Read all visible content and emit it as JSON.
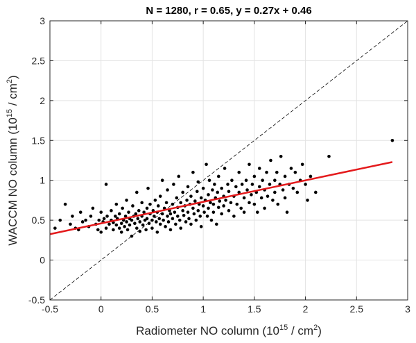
{
  "chart_data": {
    "type": "scatter",
    "title": "N = 1280, r = 0.65, y = 0.27x + 0.46",
    "xlabel": {
      "main": "Radiometer NO column (10",
      "sup": "15",
      "mid": " / cm",
      "sup2": "2",
      "end": ")"
    },
    "ylabel": {
      "main": "WACCM NO column (10",
      "sup": "15",
      "mid": " / cm",
      "sup2": "2",
      "end": ")"
    },
    "xlim": [
      -0.5,
      3
    ],
    "ylim": [
      -0.5,
      3
    ],
    "xticks": [
      "-0.5",
      "0",
      "0.5",
      "1",
      "1.5",
      "2",
      "2.5",
      "3"
    ],
    "yticks": [
      "-0.5",
      "0",
      "0.5",
      "1",
      "1.5",
      "2",
      "2.5",
      "3"
    ],
    "grid": true,
    "fit_line": {
      "slope": 0.27,
      "intercept": 0.46,
      "x_range": [
        -0.5,
        2.85
      ],
      "color": "#e41a1c"
    },
    "identity_line": {
      "style": "dashed",
      "color": "#000000"
    },
    "marker_color": "#000000",
    "n_points": 1280,
    "points": [
      [
        -0.45,
        0.4
      ],
      [
        -0.4,
        0.5
      ],
      [
        -0.35,
        0.7
      ],
      [
        -0.3,
        0.45
      ],
      [
        -0.28,
        0.55
      ],
      [
        -0.25,
        0.4
      ],
      [
        -0.22,
        0.38
      ],
      [
        -0.2,
        0.6
      ],
      [
        -0.18,
        0.48
      ],
      [
        -0.15,
        0.5
      ],
      [
        -0.12,
        0.42
      ],
      [
        -0.1,
        0.55
      ],
      [
        -0.08,
        0.65
      ],
      [
        -0.05,
        0.45
      ],
      [
        -0.03,
        0.38
      ],
      [
        -0.02,
        0.5
      ],
      [
        0.0,
        0.35
      ],
      [
        0.0,
        0.6
      ],
      [
        0.02,
        0.48
      ],
      [
        0.03,
        0.52
      ],
      [
        0.05,
        0.4
      ],
      [
        0.05,
        0.95
      ],
      [
        0.06,
        0.55
      ],
      [
        0.08,
        0.45
      ],
      [
        0.1,
        0.5
      ],
      [
        0.1,
        0.62
      ],
      [
        0.12,
        0.38
      ],
      [
        0.12,
        0.47
      ],
      [
        0.14,
        0.55
      ],
      [
        0.15,
        0.44
      ],
      [
        0.15,
        0.7
      ],
      [
        0.16,
        0.52
      ],
      [
        0.18,
        0.4
      ],
      [
        0.18,
        0.58
      ],
      [
        0.2,
        0.46
      ],
      [
        0.2,
        0.35
      ],
      [
        0.21,
        0.65
      ],
      [
        0.22,
        0.5
      ],
      [
        0.23,
        0.42
      ],
      [
        0.24,
        0.55
      ],
      [
        0.25,
        0.48
      ],
      [
        0.25,
        0.75
      ],
      [
        0.26,
        0.38
      ],
      [
        0.27,
        0.6
      ],
      [
        0.28,
        0.52
      ],
      [
        0.28,
        0.44
      ],
      [
        0.3,
        0.5
      ],
      [
        0.3,
        0.3
      ],
      [
        0.31,
        0.68
      ],
      [
        0.32,
        0.55
      ],
      [
        0.33,
        0.46
      ],
      [
        0.34,
        0.58
      ],
      [
        0.35,
        0.4
      ],
      [
        0.35,
        0.85
      ],
      [
        0.36,
        0.52
      ],
      [
        0.37,
        0.62
      ],
      [
        0.38,
        0.48
      ],
      [
        0.38,
        0.36
      ],
      [
        0.4,
        0.55
      ],
      [
        0.4,
        0.72
      ],
      [
        0.41,
        0.44
      ],
      [
        0.42,
        0.6
      ],
      [
        0.43,
        0.5
      ],
      [
        0.44,
        0.38
      ],
      [
        0.45,
        0.65
      ],
      [
        0.45,
        0.52
      ],
      [
        0.46,
        0.9
      ],
      [
        0.47,
        0.46
      ],
      [
        0.48,
        0.58
      ],
      [
        0.48,
        0.7
      ],
      [
        0.5,
        0.5
      ],
      [
        0.5,
        0.4
      ],
      [
        0.51,
        0.62
      ],
      [
        0.52,
        0.55
      ],
      [
        0.53,
        0.75
      ],
      [
        0.54,
        0.48
      ],
      [
        0.55,
        0.6
      ],
      [
        0.55,
        0.35
      ],
      [
        0.56,
        0.68
      ],
      [
        0.57,
        0.52
      ],
      [
        0.58,
        0.8
      ],
      [
        0.58,
        0.45
      ],
      [
        0.6,
        0.58
      ],
      [
        0.6,
        1.0
      ],
      [
        0.61,
        0.5
      ],
      [
        0.62,
        0.65
      ],
      [
        0.63,
        0.42
      ],
      [
        0.64,
        0.72
      ],
      [
        0.65,
        0.55
      ],
      [
        0.65,
        0.88
      ],
      [
        0.66,
        0.48
      ],
      [
        0.67,
        0.62
      ],
      [
        0.68,
        0.58
      ],
      [
        0.68,
        0.38
      ],
      [
        0.7,
        0.7
      ],
      [
        0.7,
        0.52
      ],
      [
        0.71,
        0.95
      ],
      [
        0.72,
        0.6
      ],
      [
        0.73,
        0.45
      ],
      [
        0.74,
        0.78
      ],
      [
        0.75,
        0.55
      ],
      [
        0.75,
        0.66
      ],
      [
        0.76,
        1.05
      ],
      [
        0.77,
        0.5
      ],
      [
        0.78,
        0.72
      ],
      [
        0.78,
        0.4
      ],
      [
        0.8,
        0.62
      ],
      [
        0.8,
        0.85
      ],
      [
        0.81,
        0.56
      ],
      [
        0.82,
        0.68
      ],
      [
        0.83,
        0.48
      ],
      [
        0.84,
        0.75
      ],
      [
        0.85,
        0.6
      ],
      [
        0.85,
        0.92
      ],
      [
        0.86,
        0.52
      ],
      [
        0.87,
        0.7
      ],
      [
        0.88,
        0.45
      ],
      [
        0.88,
        0.8
      ],
      [
        0.9,
        0.65
      ],
      [
        0.9,
        1.1
      ],
      [
        0.91,
        0.58
      ],
      [
        0.92,
        0.74
      ],
      [
        0.93,
        0.5
      ],
      [
        0.94,
        0.86
      ],
      [
        0.95,
        0.62
      ],
      [
        0.95,
        0.98
      ],
      [
        0.96,
        0.7
      ],
      [
        0.97,
        0.55
      ],
      [
        0.98,
        0.78
      ],
      [
        0.98,
        0.42
      ],
      [
        1.0,
        0.68
      ],
      [
        1.0,
        0.9
      ],
      [
        1.01,
        0.6
      ],
      [
        1.02,
        0.75
      ],
      [
        1.03,
        1.2
      ],
      [
        1.04,
        0.55
      ],
      [
        1.05,
        0.82
      ],
      [
        1.05,
        0.65
      ],
      [
        1.06,
        1.0
      ],
      [
        1.07,
        0.72
      ],
      [
        1.08,
        0.5
      ],
      [
        1.09,
        0.88
      ],
      [
        1.1,
        0.7
      ],
      [
        1.1,
        0.6
      ],
      [
        1.11,
        0.95
      ],
      [
        1.12,
        0.78
      ],
      [
        1.13,
        0.45
      ],
      [
        1.14,
        0.85
      ],
      [
        1.15,
        0.66
      ],
      [
        1.15,
        1.05
      ],
      [
        1.16,
        0.74
      ],
      [
        1.18,
        0.9
      ],
      [
        1.18,
        0.58
      ],
      [
        1.2,
        0.8
      ],
      [
        1.2,
        0.68
      ],
      [
        1.21,
        1.15
      ],
      [
        1.22,
        0.75
      ],
      [
        1.24,
        0.95
      ],
      [
        1.25,
        0.62
      ],
      [
        1.25,
        0.86
      ],
      [
        1.27,
        0.72
      ],
      [
        1.28,
        1.0
      ],
      [
        1.3,
        0.8
      ],
      [
        1.3,
        0.55
      ],
      [
        1.32,
        0.92
      ],
      [
        1.33,
        0.7
      ],
      [
        1.35,
        0.85
      ],
      [
        1.35,
        1.1
      ],
      [
        1.37,
        0.65
      ],
      [
        1.38,
        0.95
      ],
      [
        1.4,
        0.78
      ],
      [
        1.4,
        0.6
      ],
      [
        1.42,
        1.0
      ],
      [
        1.43,
        0.88
      ],
      [
        1.45,
        0.72
      ],
      [
        1.45,
        1.2
      ],
      [
        1.47,
        0.82
      ],
      [
        1.48,
        0.95
      ],
      [
        1.5,
        0.7
      ],
      [
        1.5,
        1.05
      ],
      [
        1.52,
        0.85
      ],
      [
        1.53,
        0.6
      ],
      [
        1.55,
        0.92
      ],
      [
        1.55,
        1.15
      ],
      [
        1.57,
        0.78
      ],
      [
        1.58,
        1.0
      ],
      [
        1.6,
        0.88
      ],
      [
        1.6,
        0.65
      ],
      [
        1.62,
        1.1
      ],
      [
        1.63,
        0.8
      ],
      [
        1.65,
        0.95
      ],
      [
        1.66,
        1.25
      ],
      [
        1.68,
        0.75
      ],
      [
        1.7,
        1.0
      ],
      [
        1.7,
        0.85
      ],
      [
        1.72,
        1.1
      ],
      [
        1.73,
        0.7
      ],
      [
        1.75,
        0.95
      ],
      [
        1.76,
        1.3
      ],
      [
        1.78,
        0.88
      ],
      [
        1.8,
        1.05
      ],
      [
        1.8,
        0.78
      ],
      [
        1.82,
        0.6
      ],
      [
        1.84,
        0.95
      ],
      [
        1.86,
        1.15
      ],
      [
        1.88,
        0.9
      ],
      [
        1.9,
        1.1
      ],
      [
        1.92,
        0.85
      ],
      [
        1.95,
        1.0
      ],
      [
        1.97,
        1.2
      ],
      [
        2.0,
        0.95
      ],
      [
        2.02,
        0.75
      ],
      [
        2.05,
        1.05
      ],
      [
        2.1,
        0.85
      ],
      [
        2.23,
        1.3
      ],
      [
        2.85,
        1.5
      ]
    ]
  }
}
